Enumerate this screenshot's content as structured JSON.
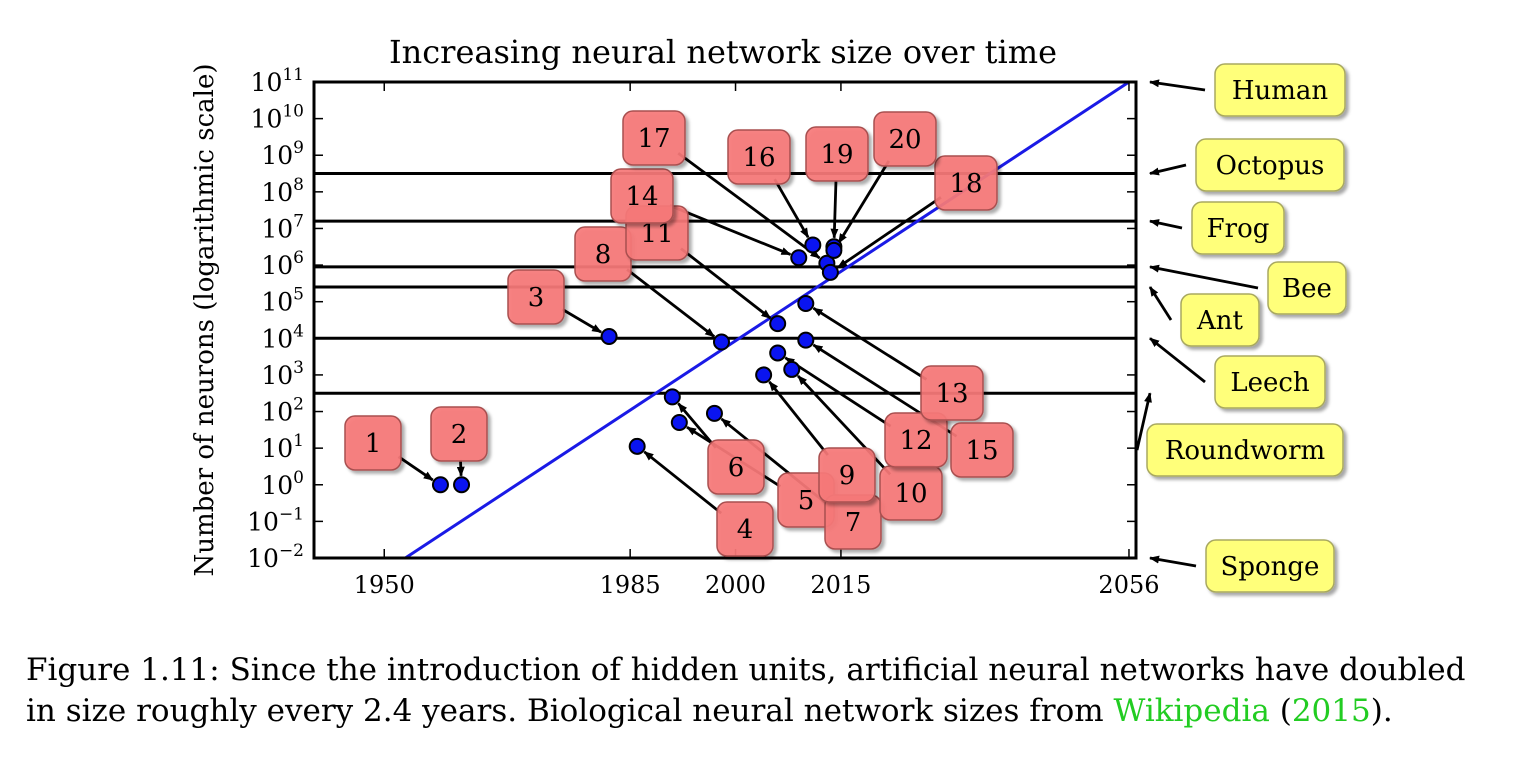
{
  "chart_data": {
    "type": "scatter",
    "title": "Increasing neural network size over time",
    "ylabel": "Number of neurons (logarithmic scale)",
    "xlabel": "",
    "yscale": "log10",
    "xlim": [
      1940,
      2057
    ],
    "ylim_exponent": [
      -2,
      11
    ],
    "x_ticks": [
      "1950",
      "1985",
      "2000",
      "2015",
      "2056"
    ],
    "x_tick_values": [
      1950,
      1985,
      2000,
      2015,
      2056
    ],
    "y_ticks": [
      {
        "base": "10",
        "exp": "11",
        "value": 11
      },
      {
        "base": "10",
        "exp": "10",
        "value": 10
      },
      {
        "base": "10",
        "exp": "9",
        "value": 9
      },
      {
        "base": "10",
        "exp": "8",
        "value": 8
      },
      {
        "base": "10",
        "exp": "7",
        "value": 7
      },
      {
        "base": "10",
        "exp": "6",
        "value": 6
      },
      {
        "base": "10",
        "exp": "5",
        "value": 5
      },
      {
        "base": "10",
        "exp": "4",
        "value": 4
      },
      {
        "base": "10",
        "exp": "3",
        "value": 3
      },
      {
        "base": "10",
        "exp": "2",
        "value": 2
      },
      {
        "base": "10",
        "exp": "1",
        "value": 1
      },
      {
        "base": "10",
        "exp": "0",
        "value": 0
      },
      {
        "base": "10",
        "exp": "−1",
        "value": -1
      },
      {
        "base": "10",
        "exp": "−2",
        "value": -2
      }
    ],
    "trend_line": {
      "x": [
        1953,
        2056
      ],
      "log10_y": [
        -2,
        11
      ]
    },
    "points": [
      {
        "label": "1",
        "x": 1958,
        "log10_y": 0
      },
      {
        "label": "2",
        "x": 1961,
        "log10_y": 0
      },
      {
        "label": "3",
        "x": 1982,
        "log10_y": 4.05
      },
      {
        "label": "4",
        "x": 1986,
        "log10_y": 1.05
      },
      {
        "label": "5",
        "x": 1992,
        "log10_y": 1.7
      },
      {
        "label": "6",
        "x": 1991,
        "log10_y": 2.4
      },
      {
        "label": "7",
        "x": 1997,
        "log10_y": 1.95
      },
      {
        "label": "8",
        "x": 1998,
        "log10_y": 3.9
      },
      {
        "label": "9",
        "x": 2004,
        "log10_y": 3.0
      },
      {
        "label": "10",
        "x": 2008,
        "log10_y": 3.15
      },
      {
        "label": "11",
        "x": 2006,
        "log10_y": 4.4
      },
      {
        "label": "12",
        "x": 2006,
        "log10_y": 3.6
      },
      {
        "label": "13",
        "x": 2010,
        "log10_y": 4.95
      },
      {
        "label": "14",
        "x": 2009,
        "log10_y": 6.2
      },
      {
        "label": "15",
        "x": 2010,
        "log10_y": 3.95
      },
      {
        "label": "16",
        "x": 2011,
        "log10_y": 6.55
      },
      {
        "label": "17",
        "x": 2013,
        "log10_y": 6.05
      },
      {
        "label": "18",
        "x": 2013.5,
        "log10_y": 5.8
      },
      {
        "label": "19",
        "x": 2014,
        "log10_y": 6.5
      },
      {
        "label": "20",
        "x": 2014,
        "log10_y": 6.4
      }
    ],
    "biological_references": [
      {
        "name": "Human",
        "log10_y": 11
      },
      {
        "name": "Octopus",
        "log10_y": 8.5
      },
      {
        "name": "Frog",
        "log10_y": 7.2
      },
      {
        "name": "Bee",
        "log10_y": 5.95
      },
      {
        "name": "Ant",
        "log10_y": 5.4
      },
      {
        "name": "Leech",
        "log10_y": 4
      },
      {
        "name": "Roundworm",
        "log10_y": 2.5
      },
      {
        "name": "Sponge",
        "log10_y": -2
      }
    ],
    "colors": {
      "points": "#0a14f0",
      "trend_line": "#1a1ae6",
      "number_box": "#f77a7a",
      "number_box_border": "#a85050",
      "reference_box": "#ffff7a",
      "reference_box_border": "#a8a860",
      "axis": "#000000"
    }
  },
  "caption": {
    "main": "Figure 1.11: Since the introduction of hidden units, artificial neural networks have doubled",
    "line2_start": "in size roughly every 2.4 years. Biological neural network sizes from ",
    "link_text": "Wikipedia",
    "paren_open": " (",
    "year_link": "2015",
    "paren_close": ")."
  }
}
